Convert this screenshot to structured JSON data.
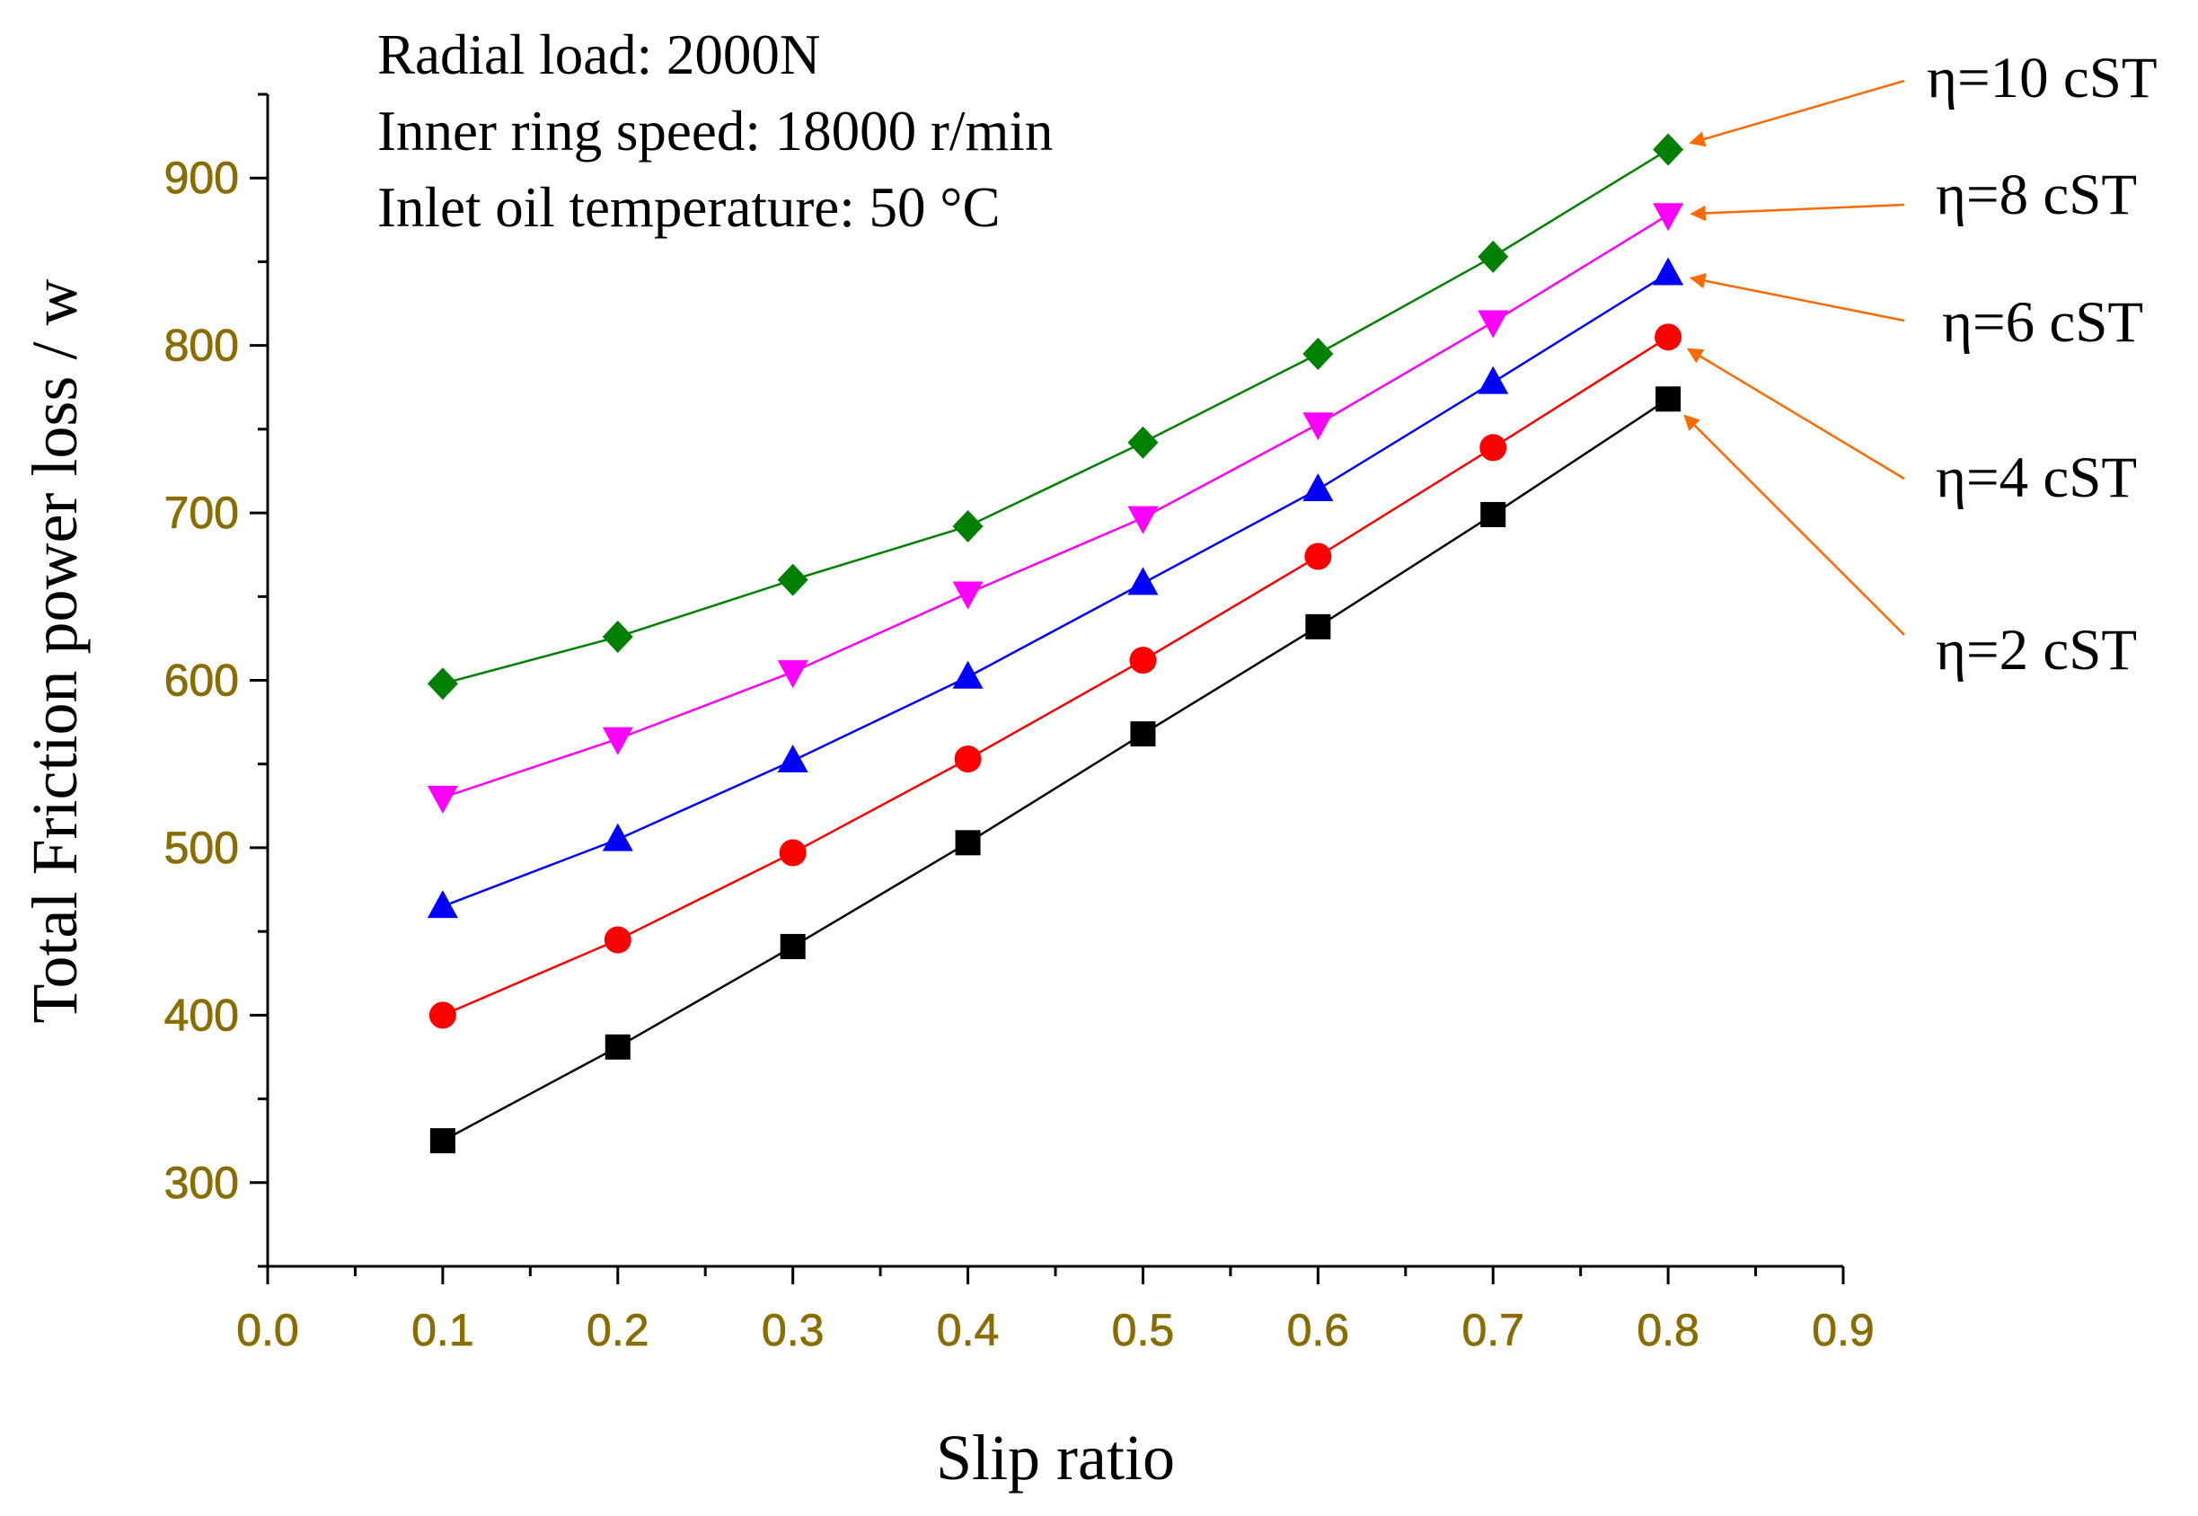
{
  "chart_data": {
    "type": "line",
    "title": "",
    "xlabel": "Slip ratio",
    "ylabel": "Total Friction power loss / w",
    "xlim": [
      0.0,
      0.9
    ],
    "ylim": [
      250,
      950
    ],
    "xticks": [
      "0.0",
      "0.1",
      "0.2",
      "0.3",
      "0.4",
      "0.5",
      "0.6",
      "0.7",
      "0.8",
      "0.9"
    ],
    "yticks": [
      "300",
      "400",
      "500",
      "600",
      "700",
      "800",
      "900"
    ],
    "x": [
      0.1,
      0.2,
      0.3,
      0.4,
      0.5,
      0.6,
      0.7,
      0.8
    ],
    "series": [
      {
        "name": "η=2 cST",
        "marker": "square",
        "color": "#000000",
        "values": [
          325,
          381,
          441,
          503,
          568,
          632,
          699,
          768
        ]
      },
      {
        "name": "η=4 cST",
        "marker": "circle",
        "color": "#ff0000",
        "values": [
          400,
          445,
          497,
          553,
          612,
          674,
          739,
          805
        ]
      },
      {
        "name": "η=6 cST",
        "marker": "triangle-up",
        "color": "#0000ff",
        "values": [
          465,
          505,
          552,
          602,
          658,
          714,
          778,
          843
        ]
      },
      {
        "name": "η=8 cST",
        "marker": "triangle-down",
        "color": "#ff00ff",
        "values": [
          530,
          565,
          605,
          652,
          697,
          753,
          814,
          878
        ]
      },
      {
        "name": "η=10 cST",
        "marker": "diamond",
        "color": "#008000",
        "values": [
          598,
          626,
          660,
          692,
          742,
          795,
          853,
          917
        ]
      }
    ],
    "annotations": [
      "Radial load: 2000N",
      "Inner ring speed: 18000 r/min",
      "Inlet oil temperature: 50  °C"
    ],
    "legend_placement": "right, with arrows pointing to series endpoints",
    "arrow_color": "#ff6a00",
    "grid": false
  }
}
